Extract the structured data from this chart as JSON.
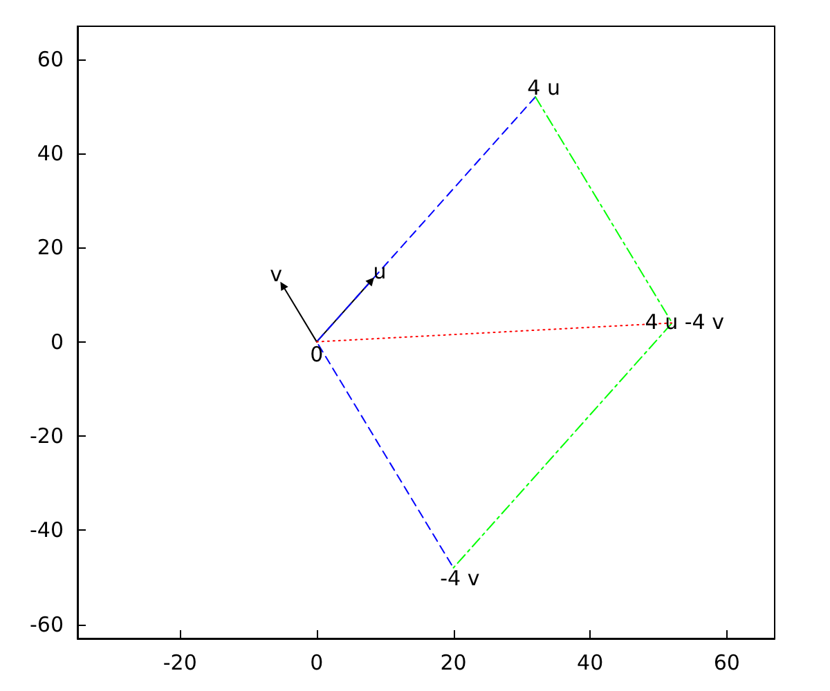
{
  "chart_data": {
    "type": "line",
    "xlim": [
      -35,
      67
    ],
    "ylim": [
      -63,
      67
    ],
    "xticks": [
      -20,
      0,
      20,
      40,
      60
    ],
    "yticks": [
      -60,
      -40,
      -20,
      0,
      20,
      40,
      60
    ],
    "series": [
      {
        "color": "#000000",
        "x": [
          0,
          8
        ],
        "values": [
          0,
          13
        ],
        "line_style": "solid",
        "marker": "triangle"
      },
      {
        "color": "#000000",
        "x": [
          0,
          -5
        ],
        "values": [
          0,
          12
        ],
        "line_style": "solid",
        "marker": "triangle"
      },
      {
        "color": "#0000ff",
        "x": [
          32,
          0,
          20
        ],
        "values": [
          52,
          0,
          -48
        ],
        "line_style": "dashed",
        "marker": "none"
      },
      {
        "color": "#00ff00",
        "x": [
          32,
          52,
          20
        ],
        "values": [
          52,
          4,
          -48
        ],
        "line_style": "dashdot",
        "marker": "none"
      },
      {
        "color": "#ff0000",
        "x": [
          0,
          52
        ],
        "values": [
          0,
          4
        ],
        "line_style": "dotted",
        "marker": "none"
      }
    ],
    "annotations": [
      {
        "text": "0",
        "x": 0,
        "y": 0
      },
      {
        "text": "u",
        "x": 8,
        "y": 13
      },
      {
        "text": "v",
        "x": -5,
        "y": 12
      },
      {
        "text": "4 u",
        "x": 32,
        "y": 52
      },
      {
        "text": "-4 v",
        "x": 20,
        "y": -48
      },
      {
        "text": "4 u -4 v",
        "x": 52,
        "y": 4
      }
    ]
  }
}
